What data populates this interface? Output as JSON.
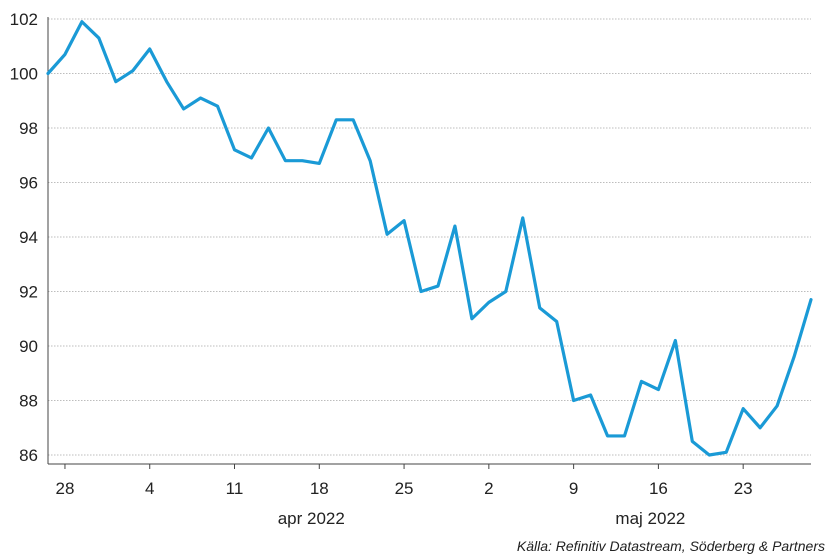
{
  "chart_data": {
    "type": "line",
    "colors": {
      "line": "#1a9ad6",
      "grid": "#bdbdbd",
      "axis": "#444444"
    },
    "ylim": [
      86,
      102
    ],
    "y_ticks": [
      86,
      88,
      90,
      92,
      94,
      96,
      98,
      100,
      102
    ],
    "x_ticks": [
      {
        "index": 1,
        "label": "28"
      },
      {
        "index": 6,
        "label": "4"
      },
      {
        "index": 11,
        "label": "11"
      },
      {
        "index": 16,
        "label": "18"
      },
      {
        "index": 21,
        "label": "25"
      },
      {
        "index": 26,
        "label": "2"
      },
      {
        "index": 31,
        "label": "9"
      },
      {
        "index": 36,
        "label": "16"
      },
      {
        "index": 41,
        "label": "23"
      }
    ],
    "month_labels": [
      {
        "index": 16,
        "label": "apr 2022"
      },
      {
        "index": 36,
        "label": "maj 2022"
      }
    ],
    "series": [
      {
        "values": [
          100.0,
          100.7,
          101.9,
          101.3,
          99.7,
          100.1,
          100.9,
          99.7,
          98.7,
          99.1,
          98.8,
          97.2,
          96.9,
          98.0,
          96.8,
          96.8,
          96.7,
          98.3,
          98.3,
          96.8,
          94.1,
          94.6,
          92.0,
          92.2,
          94.4,
          91.0,
          91.6,
          92.0,
          94.7,
          91.4,
          90.9,
          88.0,
          88.2,
          86.7,
          86.7,
          88.7,
          88.4,
          90.2,
          86.5,
          86.0,
          86.1,
          87.7,
          87.0,
          87.8,
          89.6,
          91.7
        ]
      }
    ]
  },
  "source": "Källa: Refinitiv Datastream, Söderberg & Partners"
}
